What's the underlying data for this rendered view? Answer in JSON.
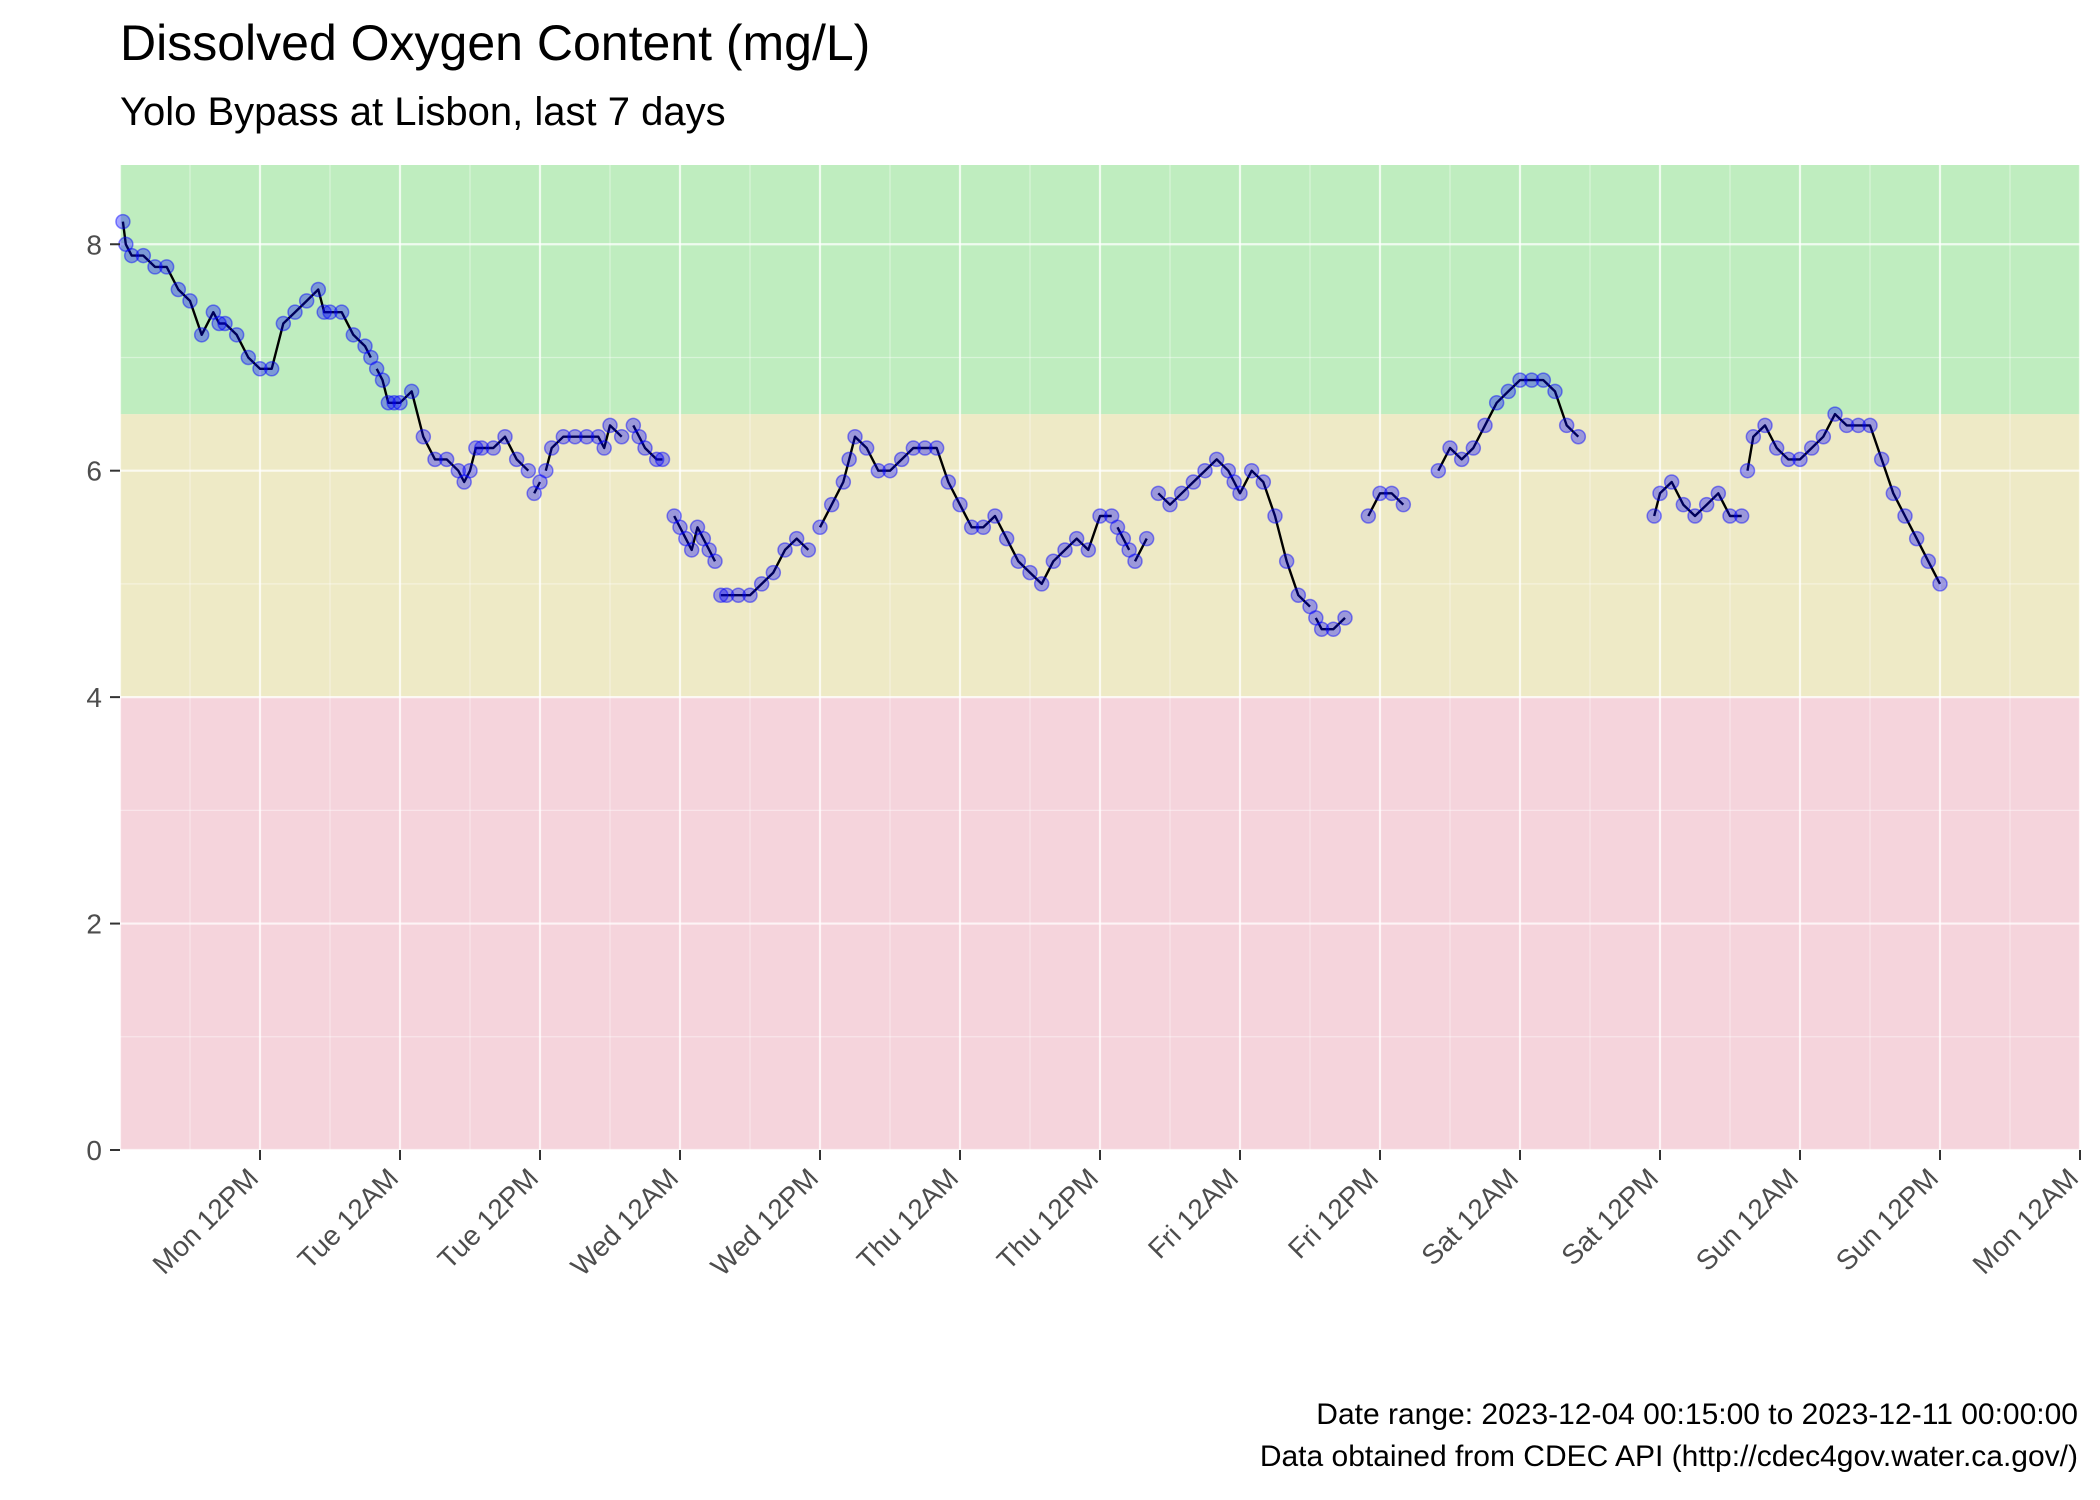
{
  "title": "Dissolved Oxygen Content (mg/L)",
  "subtitle": "Yolo Bypass at Lisbon, last 7 days",
  "caption": {
    "line1": "Date range: 2023-12-04 00:15:00 to 2023-12-11 00:00:00",
    "line2": "Data obtained from CDEC API (http://cdec4gov.water.ca.gov/)"
  },
  "colors": {
    "band_good": "#bfedbf",
    "band_fair": "#eeeac6",
    "band_poor": "#f5d4dc",
    "point_fill": "#0000ff",
    "line": "#000000"
  },
  "chart_data": {
    "type": "line",
    "x_unit": "hours since 2023-12-04 00:00",
    "xlim": [
      0,
      168
    ],
    "ylim": [
      0,
      8.7
    ],
    "grid": true,
    "y_ticks": [
      0,
      2,
      4,
      6,
      8
    ],
    "x_ticks": [
      {
        "x": 12,
        "label": "Mon 12PM"
      },
      {
        "x": 24,
        "label": "Tue 12AM"
      },
      {
        "x": 36,
        "label": "Tue 12PM"
      },
      {
        "x": 48,
        "label": "Wed 12AM"
      },
      {
        "x": 60,
        "label": "Wed 12PM"
      },
      {
        "x": 72,
        "label": "Thu 12AM"
      },
      {
        "x": 84,
        "label": "Thu 12PM"
      },
      {
        "x": 96,
        "label": "Fri 12AM"
      },
      {
        "x": 108,
        "label": "Fri 12PM"
      },
      {
        "x": 120,
        "label": "Sat 12AM"
      },
      {
        "x": 132,
        "label": "Sat 12PM"
      },
      {
        "x": 144,
        "label": "Sun 12AM"
      },
      {
        "x": 156,
        "label": "Sun 12PM"
      },
      {
        "x": 168,
        "label": "Mon 12AM"
      }
    ],
    "bands": [
      {
        "from": 0,
        "to": 4,
        "color": "#f5d4dc"
      },
      {
        "from": 4,
        "to": 6.5,
        "color": "#eeeac6"
      },
      {
        "from": 6.5,
        "to": 8.7,
        "color": "#bfedbf"
      }
    ],
    "segments": [
      {
        "x": [
          0.25,
          0.5,
          1,
          2,
          3,
          4,
          5,
          6,
          7,
          8,
          8.5,
          9,
          10,
          11,
          12,
          13,
          14,
          15,
          16,
          17,
          17.5,
          18,
          19,
          20,
          21,
          21.5
        ],
        "y": [
          8.2,
          8.0,
          7.9,
          7.9,
          7.8,
          7.8,
          7.6,
          7.5,
          7.2,
          7.4,
          7.3,
          7.3,
          7.2,
          7.0,
          6.9,
          6.9,
          7.3,
          7.4,
          7.5,
          7.6,
          7.4,
          7.4,
          7.4,
          7.2,
          7.1,
          7.0
        ]
      },
      {
        "x": [
          22,
          22.5,
          23,
          23.5,
          24,
          25,
          26,
          27,
          28,
          29,
          29.5,
          30,
          30.5,
          31,
          32,
          33,
          34,
          35
        ],
        "y": [
          6.9,
          6.8,
          6.6,
          6.6,
          6.6,
          6.7,
          6.3,
          6.1,
          6.1,
          6.0,
          5.9,
          6.0,
          6.2,
          6.2,
          6.2,
          6.3,
          6.1,
          6.0
        ]
      },
      {
        "x": [
          35.5,
          36
        ],
        "y": [
          5.8,
          5.9
        ]
      },
      {
        "x": [
          36.5,
          37,
          38,
          39,
          40,
          41,
          41.5,
          42,
          43
        ],
        "y": [
          6.0,
          6.2,
          6.3,
          6.3,
          6.3,
          6.3,
          6.2,
          6.4,
          6.3
        ]
      },
      {
        "x": [
          44,
          44.5,
          45,
          46,
          46.5
        ],
        "y": [
          6.4,
          6.3,
          6.2,
          6.1,
          6.1
        ]
      },
      {
        "x": [
          47.5,
          48,
          48.5,
          49,
          49.5,
          50,
          50.5,
          51
        ],
        "y": [
          5.6,
          5.5,
          5.4,
          5.3,
          5.5,
          5.4,
          5.3,
          5.2
        ]
      },
      {
        "x": [
          51.5,
          52,
          53,
          54,
          55,
          56,
          57,
          58,
          59
        ],
        "y": [
          4.9,
          4.9,
          4.9,
          4.9,
          5.0,
          5.1,
          5.3,
          5.4,
          5.3
        ]
      },
      {
        "x": [
          60,
          61,
          62,
          62.5,
          63,
          64,
          65,
          66,
          67,
          68,
          69,
          70,
          71,
          72,
          73,
          74,
          75,
          76,
          77,
          78,
          79,
          80,
          81,
          82,
          83,
          84,
          85
        ],
        "y": [
          5.5,
          5.7,
          5.9,
          6.1,
          6.3,
          6.2,
          6.0,
          6.0,
          6.1,
          6.2,
          6.2,
          6.2,
          5.9,
          5.7,
          5.5,
          5.5,
          5.6,
          5.4,
          5.2,
          5.1,
          5.0,
          5.2,
          5.3,
          5.4,
          5.3,
          5.6,
          5.6
        ]
      },
      {
        "x": [
          85.5,
          86,
          86.5
        ],
        "y": [
          5.5,
          5.4,
          5.3
        ]
      },
      {
        "x": [
          87,
          88
        ],
        "y": [
          5.2,
          5.4
        ]
      },
      {
        "x": [
          89,
          90,
          91,
          92,
          93,
          94,
          95,
          95.5,
          96,
          97,
          98,
          99,
          100,
          101,
          102
        ],
        "y": [
          5.8,
          5.7,
          5.8,
          5.9,
          6.0,
          6.1,
          6.0,
          5.9,
          5.8,
          6.0,
          5.9,
          5.6,
          5.2,
          4.9,
          4.8
        ]
      },
      {
        "x": [
          102.5,
          103,
          104,
          105
        ],
        "y": [
          4.7,
          4.6,
          4.6,
          4.7
        ]
      },
      {
        "x": [
          107,
          108,
          109,
          110
        ],
        "y": [
          5.6,
          5.8,
          5.8,
          5.7
        ]
      },
      {
        "x": [
          113,
          114,
          115,
          116,
          117,
          118,
          119,
          120,
          121,
          122,
          123,
          124,
          125
        ],
        "y": [
          6.0,
          6.2,
          6.1,
          6.2,
          6.4,
          6.6,
          6.7,
          6.8,
          6.8,
          6.8,
          6.7,
          6.4,
          6.3
        ]
      },
      {
        "x": [
          131.5,
          132,
          133,
          134,
          135,
          136,
          137,
          138,
          139
        ],
        "y": [
          5.6,
          5.8,
          5.9,
          5.7,
          5.6,
          5.7,
          5.8,
          5.6,
          5.6
        ]
      },
      {
        "x": [
          139.5,
          140,
          141,
          142,
          143,
          144,
          145,
          146,
          147,
          148,
          149,
          150,
          151,
          152,
          153,
          154,
          155,
          156
        ],
        "y": [
          6.0,
          6.3,
          6.4,
          6.2,
          6.1,
          6.1,
          6.2,
          6.3,
          6.5,
          6.4,
          6.4,
          6.4,
          6.1,
          5.8,
          5.6,
          5.4,
          5.2,
          5.0
        ]
      }
    ]
  }
}
